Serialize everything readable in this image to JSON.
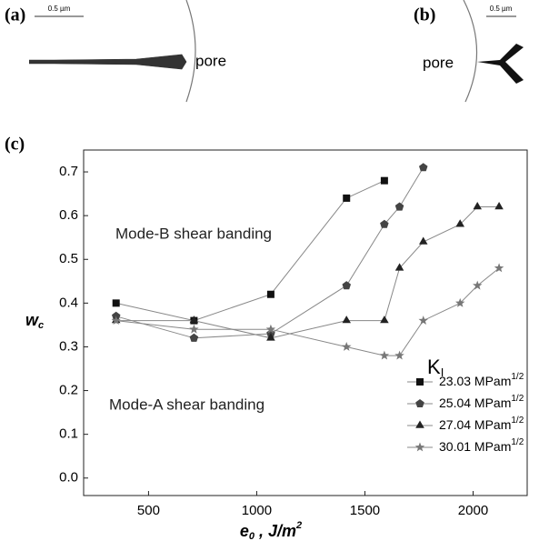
{
  "panels": {
    "a": {
      "label": "(a)",
      "scale": "0.5 µm",
      "pore": "pore"
    },
    "b": {
      "label": "(b)",
      "scale": "0.5 µm",
      "pore": "pore"
    }
  },
  "chart_data": {
    "type": "line",
    "panel_label": "(c)",
    "x_label": {
      "main": "e",
      "sub": "0",
      "rest": " , J/m",
      "sup": "2"
    },
    "y_label": {
      "main": "w",
      "sub": "c"
    },
    "annotations": [
      "Mode-B shear banding",
      "Mode-A shear banding"
    ],
    "legend_title": {
      "main": "K",
      "sub": "I"
    },
    "legend": "lower right",
    "xlim": [
      200,
      2250
    ],
    "xticks": [
      500,
      1000,
      1500,
      2000
    ],
    "ylim": [
      -0.04,
      0.75
    ],
    "yticks": [
      {
        "value": 0,
        "label": "0.0"
      },
      0.1,
      0.2,
      0.3,
      0.4,
      0.5,
      0.6,
      0.7
    ],
    "series": [
      {
        "name": "23.03 MPam",
        "name_sup": "1/2",
        "marker": "square",
        "color": "#111111",
        "x": [
          350,
          710,
          1065,
          1415,
          1590
        ],
        "values": [
          0.4,
          0.36,
          0.42,
          0.64,
          0.68
        ]
      },
      {
        "name": "25.04 MPam",
        "name_sup": "1/2",
        "marker": "pentagon",
        "color": "#444444",
        "x": [
          350,
          710,
          1065,
          1415,
          1590,
          1660,
          1770
        ],
        "values": [
          0.37,
          0.32,
          0.33,
          0.44,
          0.58,
          0.62,
          0.71
        ]
      },
      {
        "name": "27.04 MPam",
        "name_sup": "1/2",
        "marker": "triangle",
        "color": "#222222",
        "x": [
          350,
          710,
          1065,
          1415,
          1590,
          1660,
          1770,
          1940,
          2020,
          2120
        ],
        "values": [
          0.36,
          0.36,
          0.32,
          0.36,
          0.36,
          0.48,
          0.54,
          0.58,
          0.62,
          0.62
        ]
      },
      {
        "name": "30.01 MPam",
        "name_sup": "1/2",
        "marker": "star",
        "color": "#777777",
        "x": [
          350,
          710,
          1065,
          1415,
          1590,
          1660,
          1770,
          1940,
          2020,
          2120
        ],
        "values": [
          0.36,
          0.34,
          0.34,
          0.3,
          0.28,
          0.28,
          0.36,
          0.4,
          0.44,
          0.48
        ]
      }
    ]
  }
}
